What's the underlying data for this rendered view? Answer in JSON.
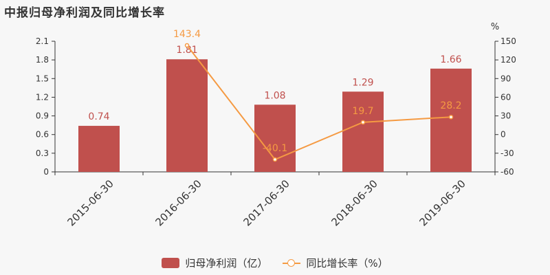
{
  "title": "中报归母净利润及同比增长率",
  "right_axis_unit": "%",
  "legend": {
    "bar_label": "归母净利润（亿）",
    "line_label": "同比增长率（%）"
  },
  "colors": {
    "bar": "#c0504d",
    "line": "#f59a42",
    "axis": "#333333",
    "label_bar": "#c0504d",
    "label_line": "#f59a42"
  },
  "chart_data": {
    "type": "bar",
    "categories": [
      "2015-06-30",
      "2016-06-30",
      "2017-06-30",
      "2018-06-30",
      "2019-06-30"
    ],
    "series": [
      {
        "name": "归母净利润（亿）",
        "type": "bar",
        "axis": "left",
        "values": [
          0.74,
          1.81,
          1.08,
          1.29,
          1.66
        ],
        "labels": [
          "0.74",
          "1.81",
          "1.08",
          "1.29",
          "1.66"
        ]
      },
      {
        "name": "同比增长率（%）",
        "type": "line",
        "axis": "right",
        "values": [
          null,
          143.4,
          -40.1,
          19.7,
          28.2
        ],
        "labels": [
          "",
          "143.4",
          "-40.1",
          "19.7",
          "28.2"
        ]
      }
    ],
    "y_left": {
      "min": 0,
      "max": 2.1,
      "ticks": [
        "0",
        "0.3",
        "0.6",
        "0.9",
        "1.2",
        "1.5",
        "1.8",
        "2.1"
      ]
    },
    "y_right": {
      "min": -60,
      "max": 150,
      "ticks": [
        "-60",
        "-30",
        "0",
        "30",
        "60",
        "90",
        "120",
        "150"
      ]
    },
    "grid": false,
    "legend_position": "bottom"
  }
}
